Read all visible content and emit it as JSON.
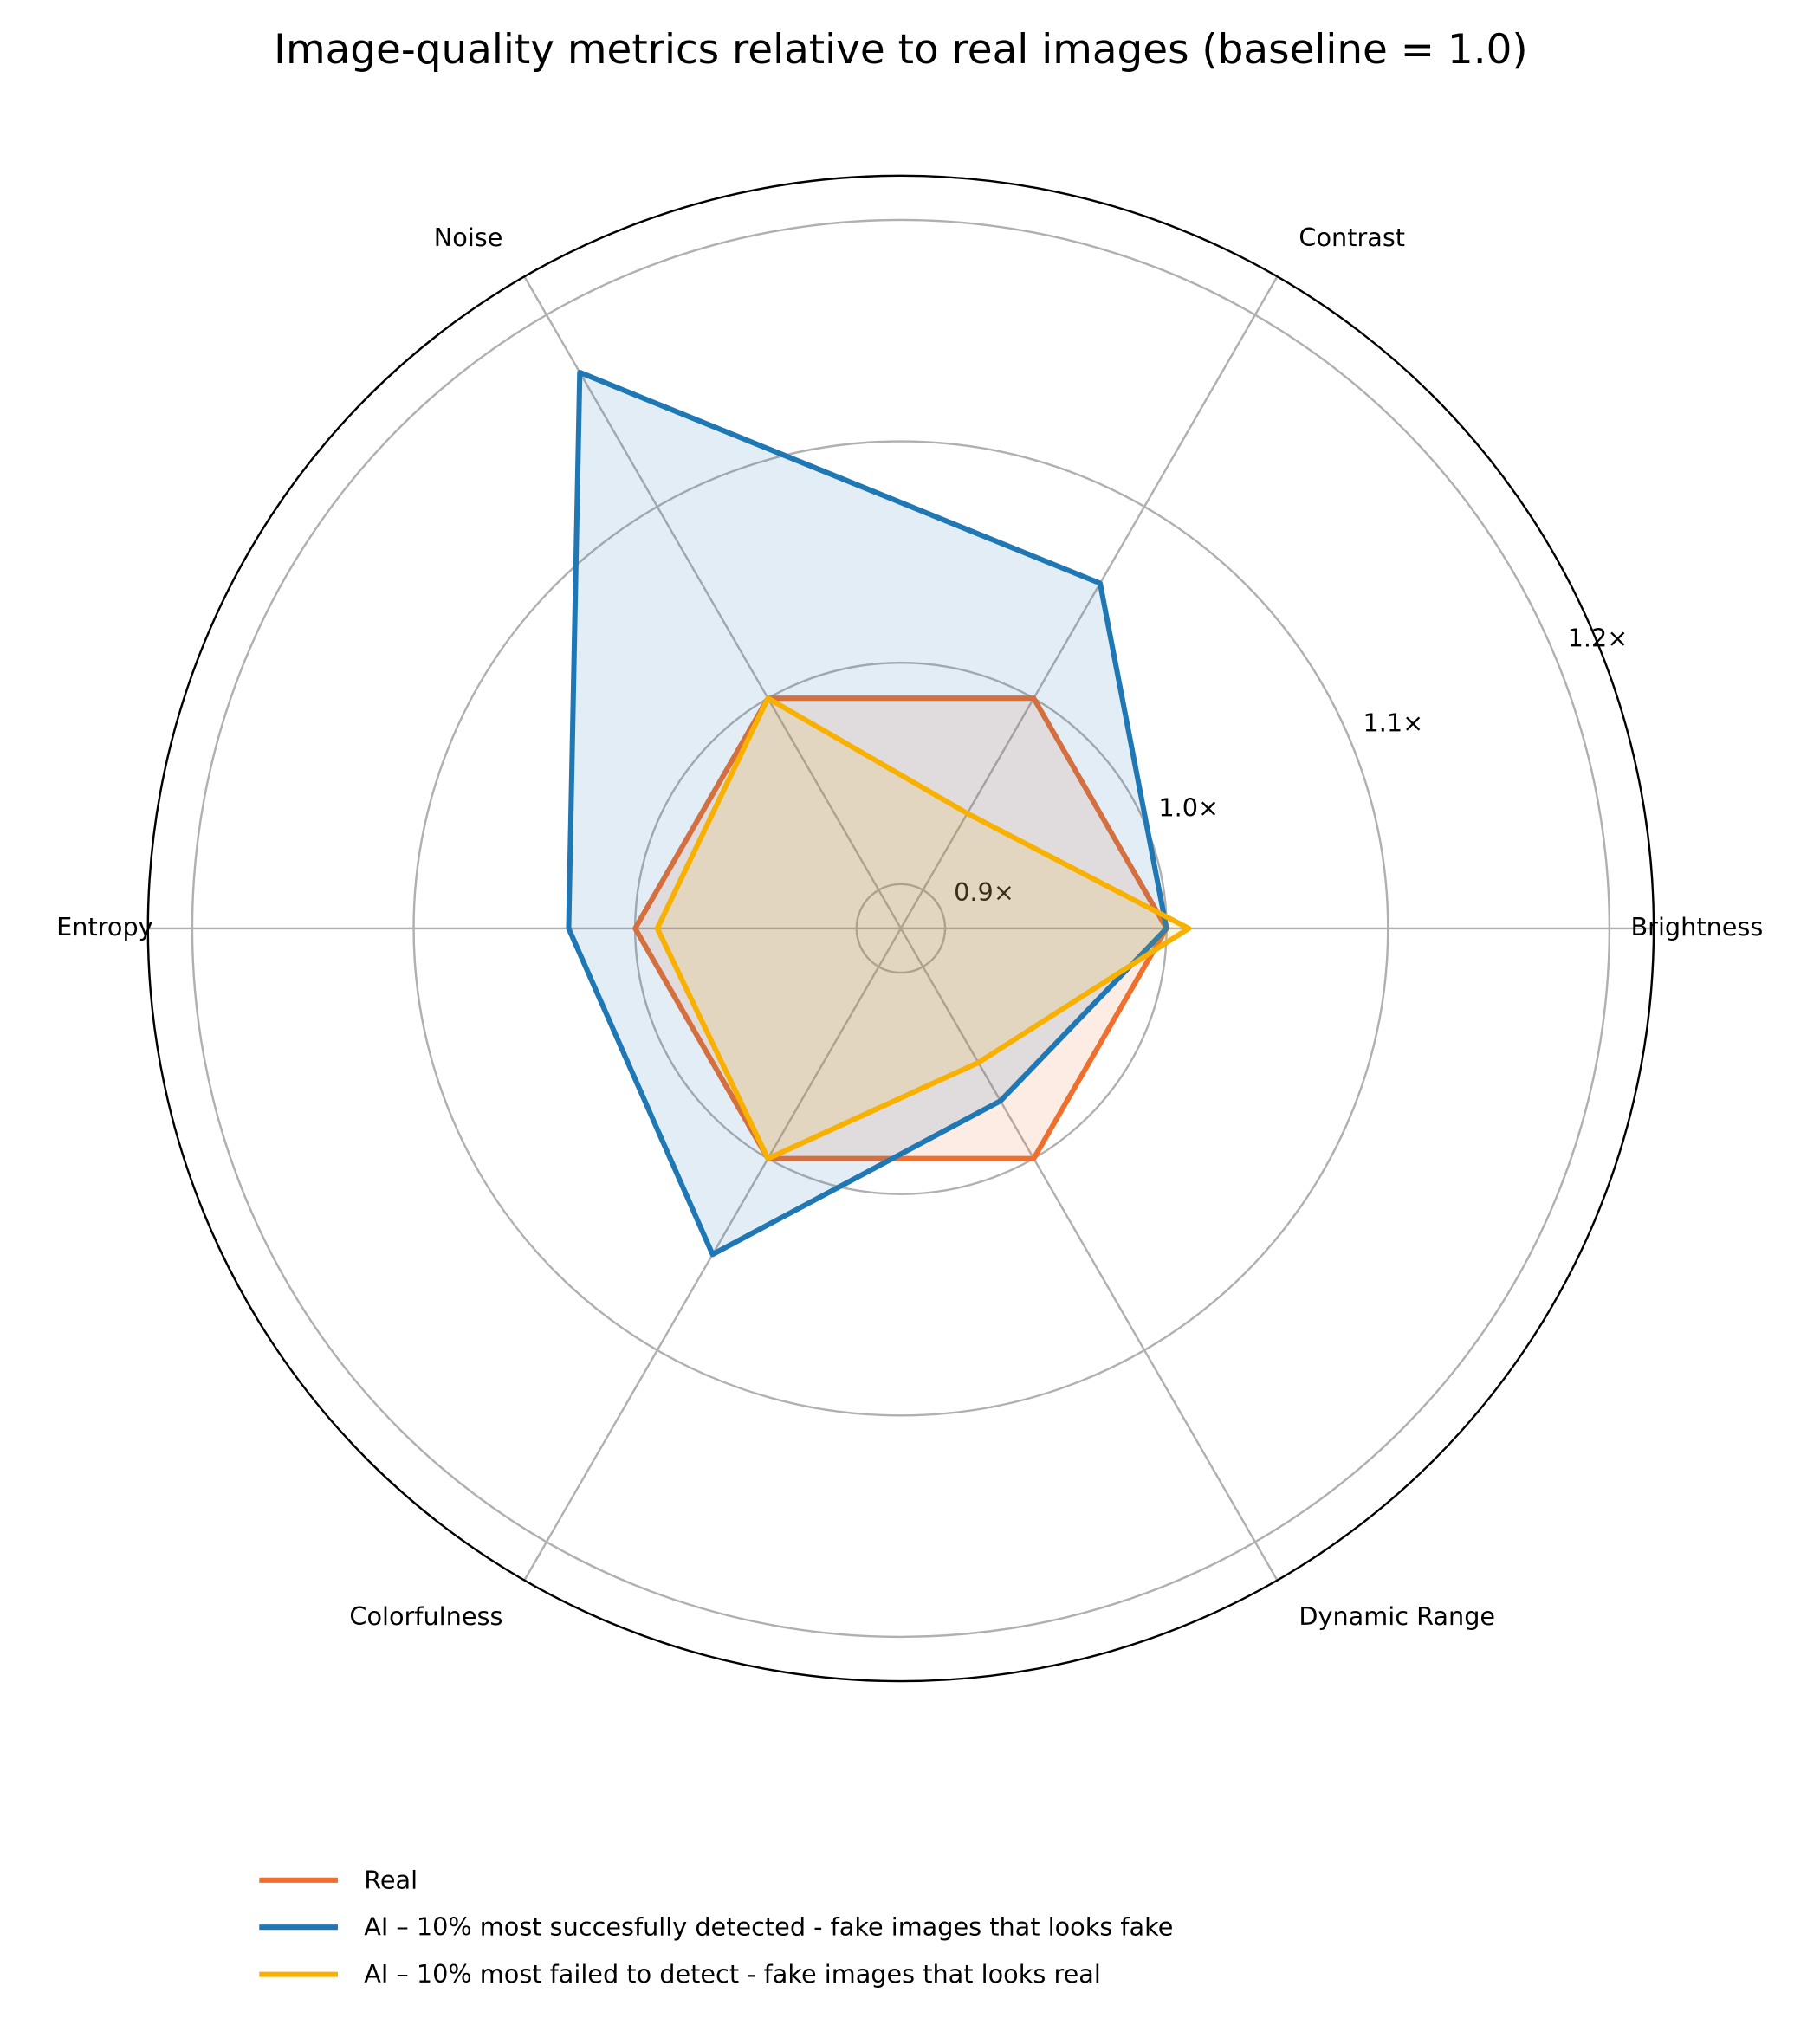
{
  "chart_data": {
    "type": "radar",
    "title": "Image-quality metrics relative to real images (baseline = 1.0)",
    "categories": [
      "Brightness",
      "Contrast",
      "Noise",
      "Entropy",
      "Colorfulness",
      "Dynamic Range"
    ],
    "series": [
      {
        "name": "Real",
        "color": "#ef6f2e",
        "values": [
          1.0,
          1.0,
          1.0,
          1.0,
          1.0,
          1.0
        ]
      },
      {
        "name": "AI – 10% most succesfully detected - fake images that looks fake",
        "color": "#1f77b4",
        "values": [
          1.0,
          1.06,
          1.17,
          1.03,
          1.05,
          0.97
        ]
      },
      {
        "name": "AI – 10% most failed to detect - fake images that looks real",
        "color": "#f8b100",
        "values": [
          1.01,
          0.94,
          1.0,
          0.99,
          1.0,
          0.95
        ]
      }
    ],
    "ylim": [
      0.88,
      1.22
    ],
    "yticks": [
      {
        "value": 0.9,
        "label": "0.9×"
      },
      {
        "value": 1.0,
        "label": "1.0×"
      },
      {
        "value": 1.1,
        "label": "1.1×"
      },
      {
        "value": 1.2,
        "label": "1.2×"
      }
    ],
    "grid": true,
    "fill": true,
    "legend": "lower center"
  }
}
